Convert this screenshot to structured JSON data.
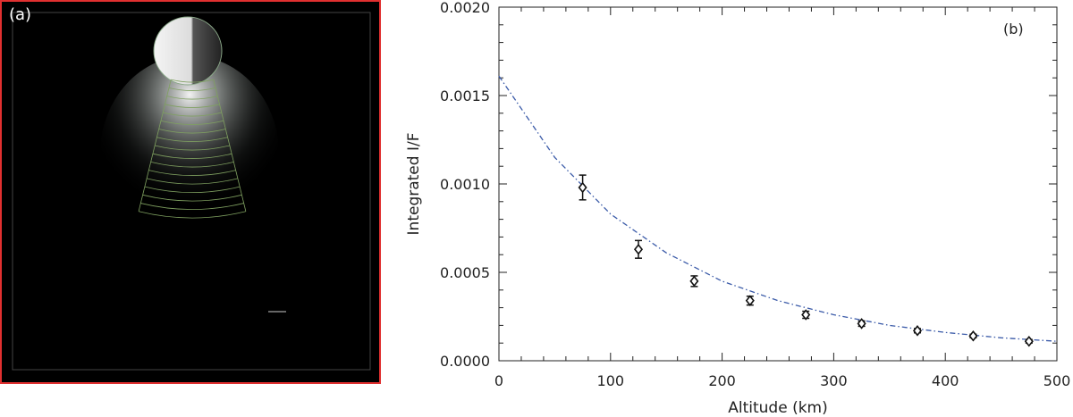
{
  "panel_a": {
    "label": "(a)"
  },
  "colors": {
    "frame": "#e03030",
    "fit_line": "#3a5aa8",
    "grid_overlay": "#7fa060",
    "marker": "#111111"
  },
  "chart_data": {
    "type": "scatter",
    "panel_label": "(b)",
    "xlabel": "Altitude (km)",
    "ylabel": "Integrated I/F",
    "xlim": [
      0,
      500
    ],
    "ylim": [
      0,
      0.002
    ],
    "x_ticks": [
      "0",
      "100",
      "200",
      "300",
      "400",
      "500"
    ],
    "y_ticks": [
      "0.0000",
      "0.0005",
      "0.0010",
      "0.0015",
      "0.0020"
    ],
    "grid": false,
    "series": [
      {
        "x": [
          75,
          125,
          175,
          225,
          275,
          325,
          375,
          425,
          475
        ],
        "y": [
          0.00098,
          0.00063,
          0.00045,
          0.00034,
          0.00026,
          0.00021,
          0.00017,
          0.00014,
          0.00011
        ],
        "yerr": [
          7e-05,
          5e-05,
          3e-05,
          2.5e-05,
          2e-05,
          1.5e-05,
          1.2e-05,
          1e-05,
          1e-05
        ],
        "marker": "diamond"
      }
    ],
    "fit": {
      "style": "dash-dot",
      "x": [
        0,
        50,
        100,
        150,
        200,
        250,
        300,
        350,
        400,
        450,
        500
      ],
      "y": [
        0.00161,
        0.00115,
        0.00083,
        0.00061,
        0.00045,
        0.00034,
        0.00026,
        0.0002,
        0.00016,
        0.00013,
        0.00011
      ]
    }
  }
}
